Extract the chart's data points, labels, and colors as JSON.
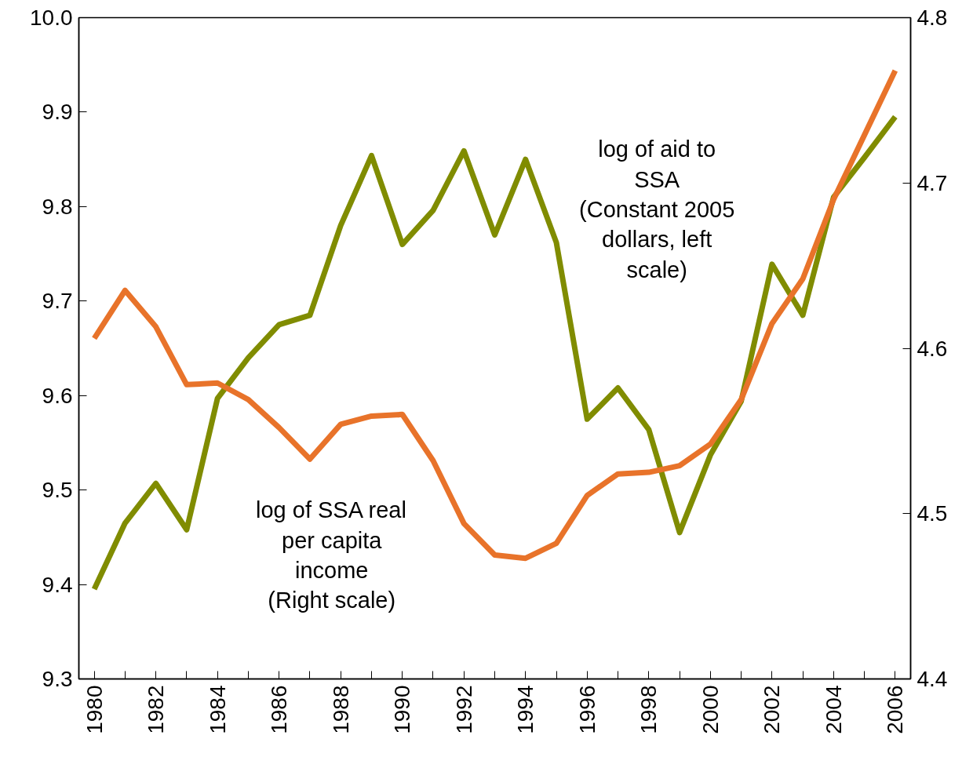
{
  "chart_data": {
    "type": "line",
    "x": [
      1980,
      1981,
      1982,
      1983,
      1984,
      1985,
      1986,
      1987,
      1988,
      1989,
      1990,
      1991,
      1992,
      1993,
      1994,
      1995,
      1996,
      1997,
      1998,
      1999,
      2000,
      2001,
      2002,
      2003,
      2004,
      2005,
      2006
    ],
    "series": [
      {
        "color": "#808c00",
        "values": [
          9.395,
          9.465,
          9.507,
          9.458,
          9.597,
          9.64,
          9.675,
          9.685,
          9.78,
          9.854,
          9.76,
          9.796,
          9.859,
          9.77,
          9.85,
          9.762,
          9.575,
          9.608,
          9.564,
          9.455,
          9.537,
          9.594,
          9.739,
          9.685,
          9.81,
          9.852,
          9.895
        ]
      },
      {
        "color": "#e8732a",
        "axis": "y2",
        "values": [
          4.606,
          4.635,
          4.613,
          4.578,
          4.579,
          4.569,
          4.552,
          4.533,
          4.554,
          4.559,
          4.56,
          4.532,
          4.494,
          4.475,
          4.473,
          4.482,
          4.511,
          4.524,
          4.525,
          4.529,
          4.542,
          4.569,
          4.615,
          4.642,
          4.69,
          4.729,
          4.768
        ]
      }
    ],
    "xlim": [
      1979.5,
      2006.5
    ],
    "xticks": [
      1980,
      {
        "value": 1981,
        "label": null
      },
      1982,
      {
        "value": 1983,
        "label": null
      },
      1984,
      {
        "value": 1985,
        "label": null
      },
      1986,
      {
        "value": 1987,
        "label": null
      },
      1988,
      {
        "value": 1989,
        "label": null
      },
      1990,
      {
        "value": 1991,
        "label": null
      },
      1992,
      {
        "value": 1993,
        "label": null
      },
      1994,
      {
        "value": 1995,
        "label": null
      },
      1996,
      {
        "value": 1997,
        "label": null
      },
      1998,
      {
        "value": 1999,
        "label": null
      },
      2000,
      {
        "value": 2001,
        "label": null
      },
      2002,
      {
        "value": 2003,
        "label": null
      },
      2004,
      {
        "value": 2005,
        "label": null
      },
      2006
    ],
    "ylim": [
      9.3,
      10.0
    ],
    "yticks": [
      {
        "value": 9.3,
        "label": "9.3"
      },
      {
        "value": 9.4,
        "label": "9.4"
      },
      {
        "value": 9.5,
        "label": "9.5"
      },
      {
        "value": 9.6,
        "label": "9.6"
      },
      {
        "value": 9.7,
        "label": "9.7"
      },
      {
        "value": 9.8,
        "label": "9.8"
      },
      {
        "value": 9.9,
        "label": "9.9"
      },
      {
        "value": 10.0,
        "label": "10.0"
      }
    ],
    "y2lim": [
      4.4,
      4.8
    ],
    "y2ticks": [
      {
        "value": 4.4,
        "label": "4.4"
      },
      {
        "value": 4.5,
        "label": "4.5"
      },
      {
        "value": 4.6,
        "label": "4.6"
      },
      {
        "value": 4.7,
        "label": "4.7"
      },
      {
        "value": 4.8,
        "label": "4.8"
      }
    ],
    "annotations": [
      "log of aid to\nSSA\n(Constant 2005\ndollars, left\nscale)",
      "log of SSA real\nper capita\nincome\n(Right scale)"
    ],
    "grid": false,
    "marker": "none",
    "line_style": "solid"
  }
}
